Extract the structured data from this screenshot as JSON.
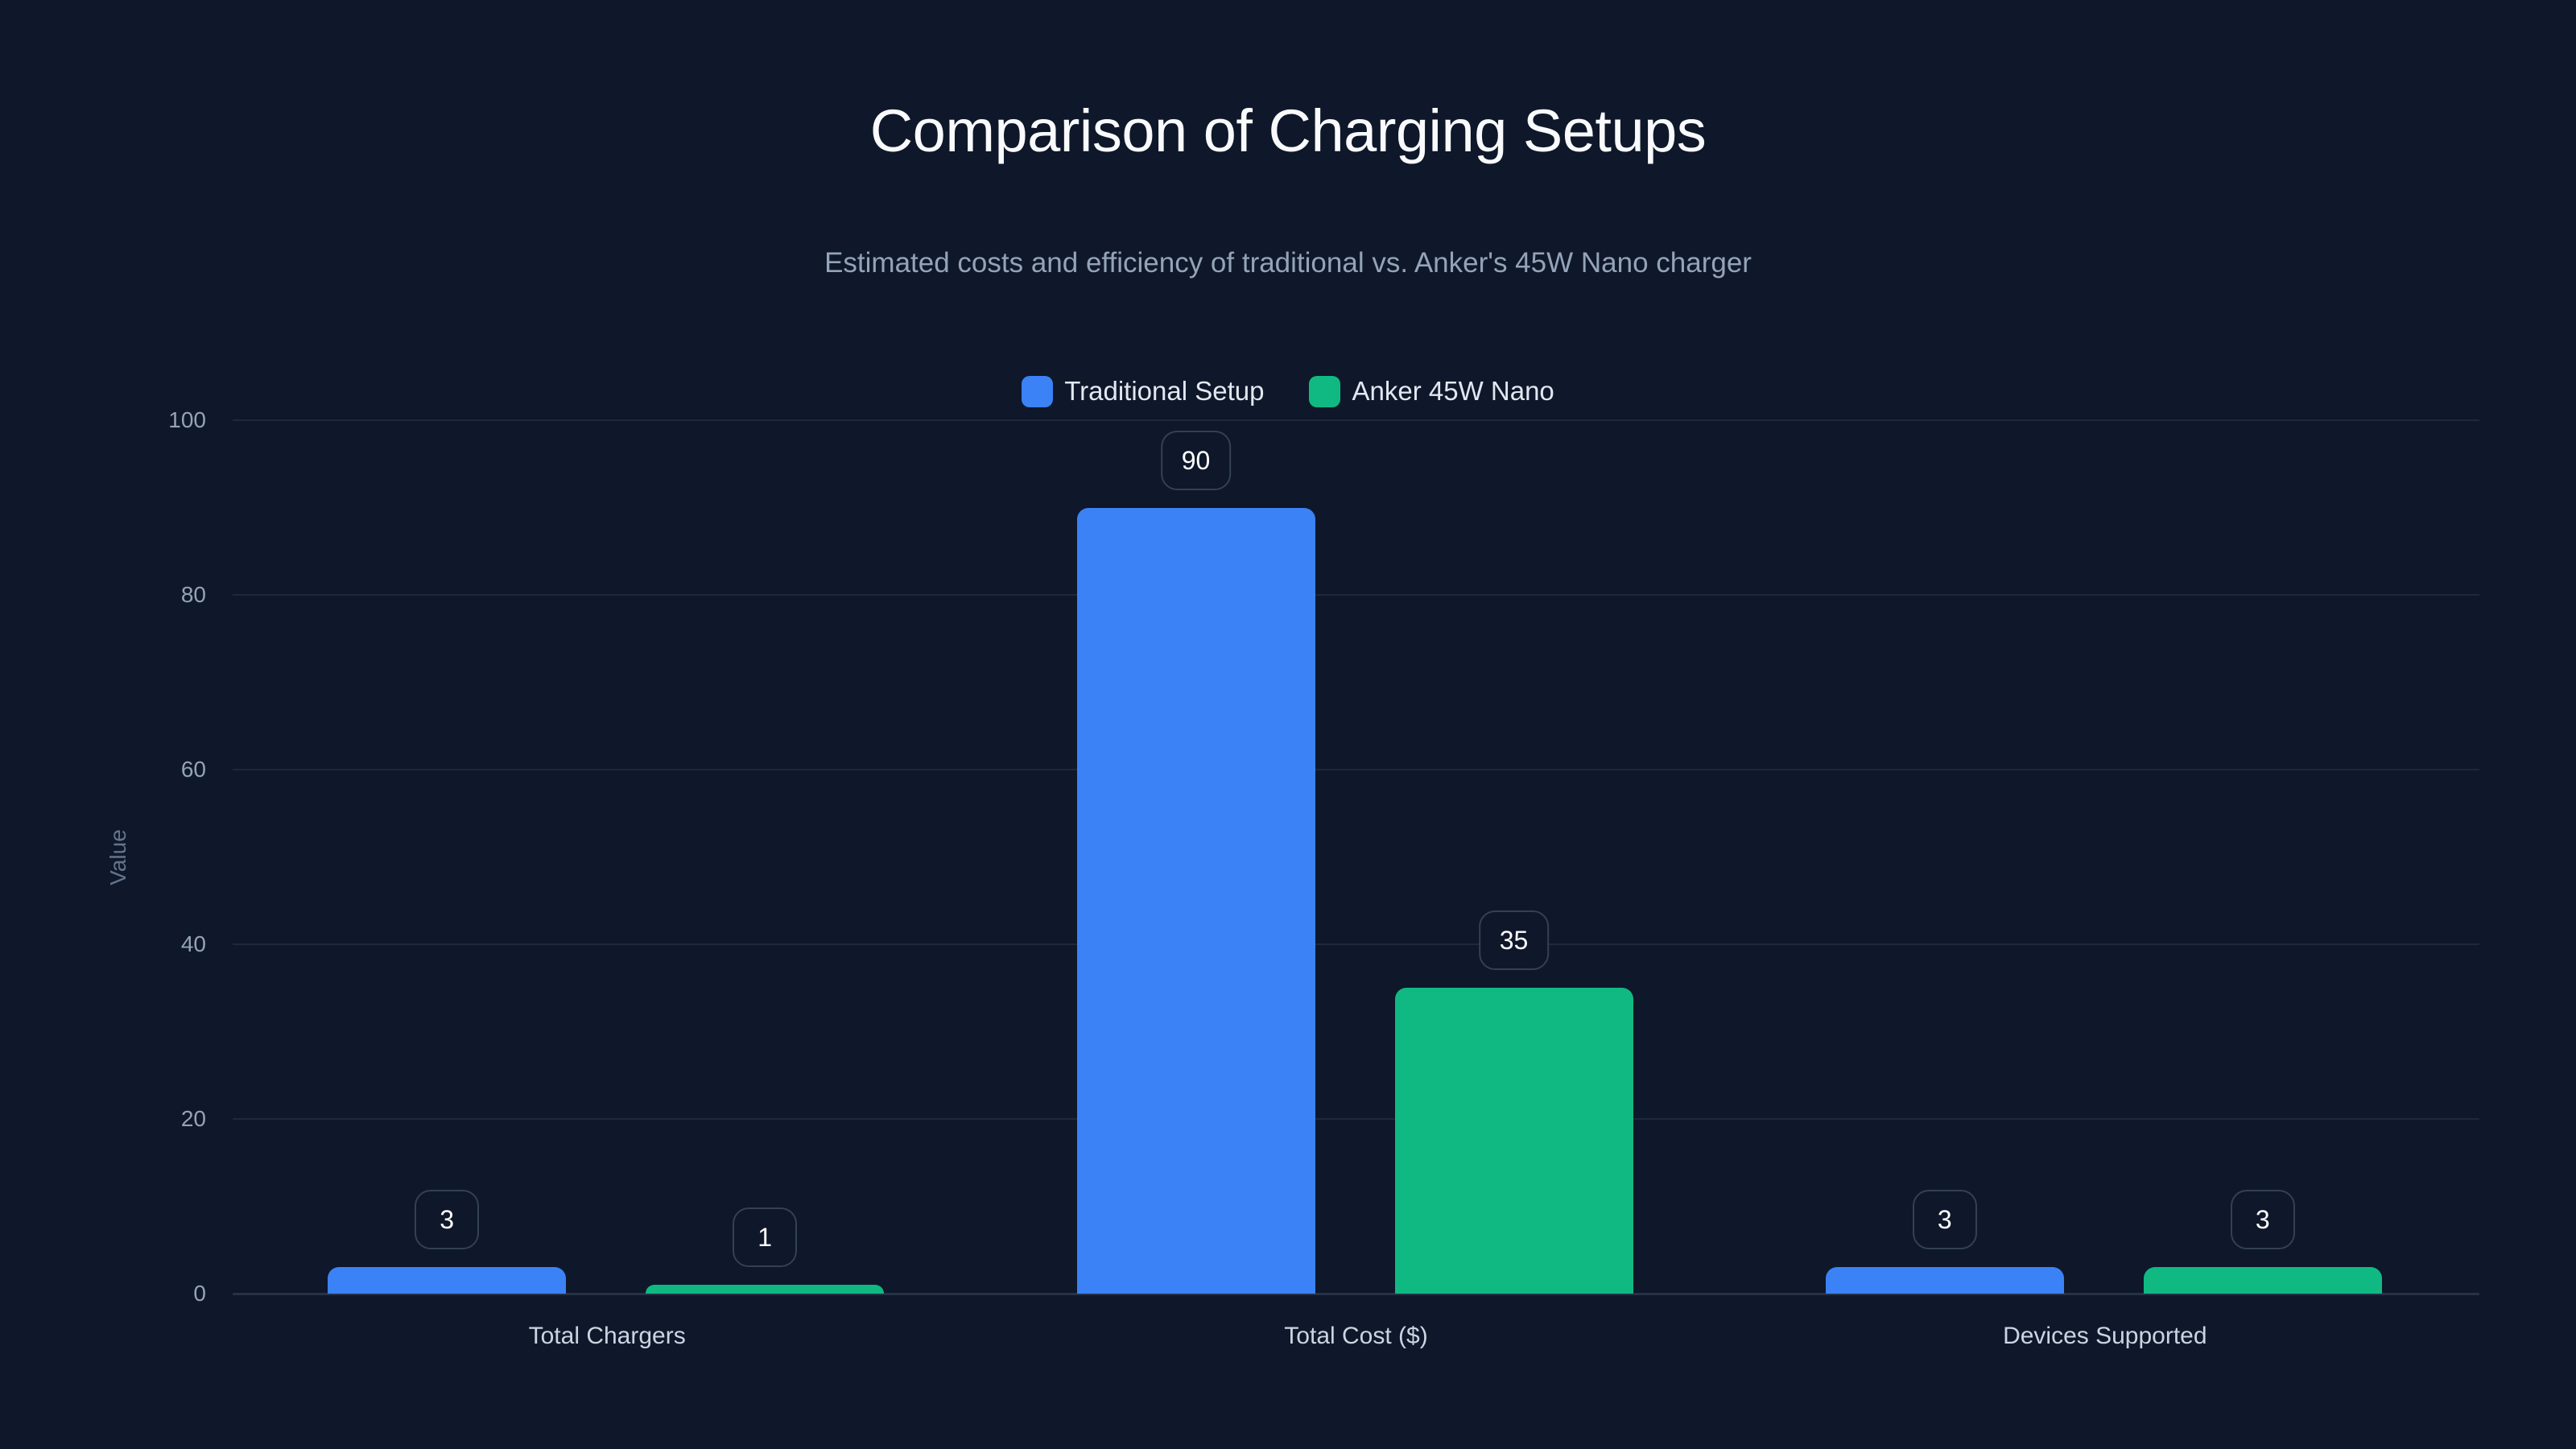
{
  "title": "Comparison of Charging Setups",
  "subtitle": "Estimated costs and efficiency of traditional vs. Anker's 45W Nano charger",
  "legend": [
    {
      "label": "Traditional Setup",
      "color": "#3b82f6"
    },
    {
      "label": "Anker 45W Nano",
      "color": "#10b981"
    }
  ],
  "y_axis": {
    "title": "Value",
    "ticks": [
      "0",
      "20",
      "40",
      "60",
      "80",
      "100"
    ]
  },
  "x_axis": {
    "categories": [
      "Total Chargers",
      "Total Cost ($)",
      "Devices Supported"
    ]
  },
  "chart_data": {
    "type": "bar",
    "title": "Comparison of Charging Setups",
    "subtitle": "Estimated costs and efficiency of traditional vs. Anker's 45W Nano charger",
    "categories": [
      "Total Chargers",
      "Total Cost ($)",
      "Devices Supported"
    ],
    "series": [
      {
        "name": "Traditional Setup",
        "color": "#3b82f6",
        "values": [
          3,
          90,
          3
        ]
      },
      {
        "name": "Anker 45W Nano",
        "color": "#10b981",
        "values": [
          1,
          35,
          3
        ]
      }
    ],
    "xlabel": "",
    "ylabel": "Value",
    "ylim": [
      0,
      100
    ],
    "yticks": [
      0,
      20,
      40,
      60,
      80,
      100
    ],
    "grid": true,
    "legend_position": "top-center",
    "data_labels": true
  }
}
